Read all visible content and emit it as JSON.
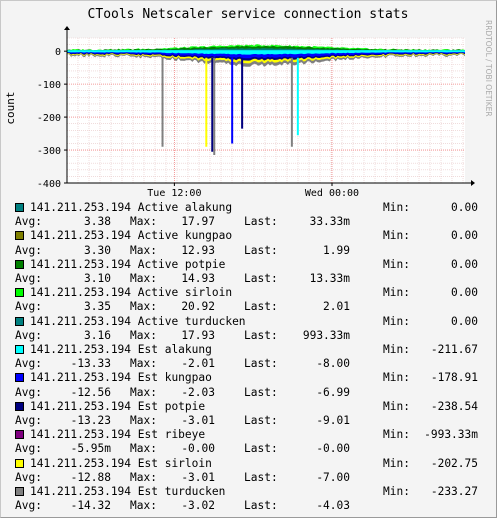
{
  "chart_data": {
    "type": "area",
    "title": "CTools Netscaler service connection stats",
    "ylabel": "count",
    "side_label": "RRDTOOL / TOBI OETIKER",
    "ylim": [
      -400,
      40
    ],
    "yticks": [
      0,
      -100,
      -200,
      -300,
      -400
    ],
    "ytick_labels": [
      "0",
      "-100",
      "-200",
      "-300",
      "-400"
    ],
    "xticks": [
      "Tue 12:00",
      "Wed 00:00"
    ],
    "grid": true,
    "series": [
      {
        "name": "141.211.253.194 Active alakung",
        "color": "#008080",
        "min": "0.00",
        "avg": "3.38",
        "max": "17.97",
        "last": "33.33m"
      },
      {
        "name": "141.211.253.194 Active kungpao",
        "color": "#808000",
        "min": "0.00",
        "avg": "3.30",
        "max": "12.93",
        "last": "1.99"
      },
      {
        "name": "141.211.253.194 Active potpie",
        "color": "#008000",
        "min": "0.00",
        "avg": "3.10",
        "max": "14.93",
        "last": "13.33m"
      },
      {
        "name": "141.211.253.194 Active sirloin",
        "color": "#00ff00",
        "min": "0.00",
        "avg": "3.35",
        "max": "20.92",
        "last": "2.01"
      },
      {
        "name": "141.211.253.194 Active turducken",
        "color": "#008080",
        "min": "0.00",
        "avg": "3.16",
        "max": "17.93",
        "last": "993.33m"
      },
      {
        "name": "141.211.253.194 Est alakung",
        "color": "#00ffff",
        "min": "-211.67",
        "avg": "-13.33",
        "max": "-2.01",
        "last": "-8.00"
      },
      {
        "name": "141.211.253.194 Est kungpao",
        "color": "#0000ff",
        "min": "-178.91",
        "avg": "-12.56",
        "max": "-2.03",
        "last": "-6.99"
      },
      {
        "name": "141.211.253.194 Est potpie",
        "color": "#000080",
        "min": "-238.54",
        "avg": "-13.23",
        "max": "-3.01",
        "last": "-9.01"
      },
      {
        "name": "141.211.253.194 Est ribeye",
        "color": "#800080",
        "min": "-993.33m",
        "avg": "-5.95m",
        "max": "-0.00",
        "last": "-0.00"
      },
      {
        "name": "141.211.253.194 Est sirloin",
        "color": "#ffff00",
        "min": "-202.75",
        "avg": "-12.88",
        "max": "-3.01",
        "last": "-7.00"
      },
      {
        "name": "141.211.253.194 Est turducken",
        "color": "#808080",
        "min": "-233.27",
        "avg": "-14.32",
        "max": "-3.02",
        "last": "-4.03"
      }
    ],
    "spikes": [
      {
        "series": "141.211.253.194 Est turducken",
        "x_frac": 0.24,
        "value": -290
      },
      {
        "series": "141.211.253.194 Est sirloin",
        "x_frac": 0.35,
        "value": -290
      },
      {
        "series": "141.211.253.194 Est potpie",
        "x_frac": 0.365,
        "value": -305
      },
      {
        "series": "141.211.253.194 Est turducken",
        "x_frac": 0.37,
        "value": -315
      },
      {
        "series": "141.211.253.194 Est kungpao",
        "x_frac": 0.415,
        "value": -280
      },
      {
        "series": "141.211.253.194 Est potpie",
        "x_frac": 0.44,
        "value": -235
      },
      {
        "series": "141.211.253.194 Est turducken",
        "x_frac": 0.565,
        "value": -290
      },
      {
        "series": "141.211.253.194 Est alakung",
        "x_frac": 0.58,
        "value": -255
      }
    ]
  },
  "legend": {
    "min_label": "Min:",
    "avg_label": "Avg:",
    "max_label": "Max:",
    "last_label": "Last:"
  }
}
